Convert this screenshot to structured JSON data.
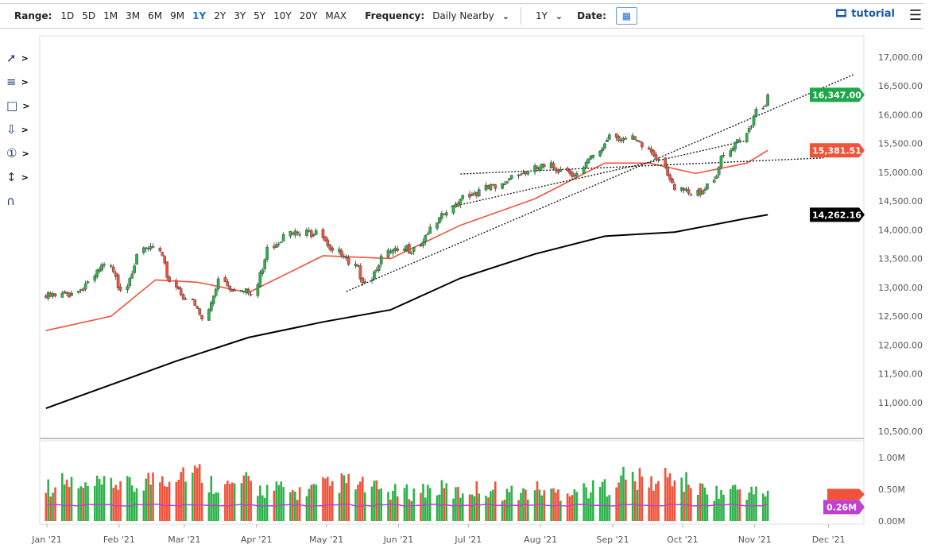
{
  "toolbar": {
    "range_label": "Range:",
    "ranges": [
      "1D",
      "5D",
      "1M",
      "3M",
      "6M",
      "9M",
      "1Y",
      "2Y",
      "3Y",
      "5Y",
      "10Y",
      "20Y",
      "MAX"
    ],
    "active_range": "1Y",
    "frequency_label": "Frequency:",
    "frequency_value": "Daily Nearby",
    "period_value": "1Y",
    "date_label": "Date:",
    "tutorial": "tutorial"
  },
  "drawing_tools": [
    "line-tool-icon",
    "fib-lines-icon",
    "rectangle-tool-icon",
    "arrow-down-icon",
    "numbered-marker-icon",
    "measure-tool-icon",
    "magnet-icon"
  ],
  "chart_data": {
    "type": "candlestick",
    "price_axis": {
      "min": 10500,
      "max": 17000,
      "ticks": [
        "17,000.00",
        "16,500.00",
        "16,000.00",
        "15,500.00",
        "15,000.00",
        "14,500.00",
        "14,000.00",
        "13,500.00",
        "13,000.00",
        "12,500.00",
        "12,000.00",
        "11,500.00",
        "11,000.00",
        "10,500.00"
      ]
    },
    "volume_axis": {
      "ticks": [
        "1.00M",
        "0.50M",
        "0.00M"
      ]
    },
    "x_ticks": [
      {
        "label": "Jan '21",
        "date": "2021-01-01"
      },
      {
        "label": "Feb '21",
        "date": "2021-02-01"
      },
      {
        "label": "Mar '21",
        "date": "2021-03-01"
      },
      {
        "label": "Apr '21",
        "date": "2021-04-01"
      },
      {
        "label": "May '21",
        "date": "2021-05-01"
      },
      {
        "label": "Jun '21",
        "date": "2021-06-01"
      },
      {
        "label": "Jul '21",
        "date": "2021-07-01"
      },
      {
        "label": "Aug '21",
        "date": "2021-08-01"
      },
      {
        "label": "Sep '21",
        "date": "2021-09-01"
      },
      {
        "label": "Oct '21",
        "date": "2021-10-01"
      },
      {
        "label": "Nov '21",
        "date": "2021-11-01"
      },
      {
        "label": "Dec '21",
        "date": "2021-12-01"
      }
    ],
    "weekly_start": "2021-01-04",
    "weekly_closes": [
      12850,
      12900,
      13100,
      13400,
      12950,
      13575,
      13700,
      13100,
      12800,
      12450,
      13150,
      12950,
      12880,
      13700,
      13920,
      13920,
      13990,
      13640,
      13400,
      13100,
      13550,
      13640,
      13700,
      14050,
      14300,
      14600,
      14700,
      14720,
      14950,
      15020,
      15100,
      15050,
      14980,
      15300,
      15650,
      15580,
      15440,
      15230,
      14700,
      14600,
      14800,
      15300,
      15550,
      16100,
      16347
    ],
    "weekly_volume_m": [
      0.55,
      0.6,
      0.5,
      0.55,
      0.6,
      0.55,
      0.65,
      0.7,
      0.8,
      0.75,
      0.6,
      0.55,
      0.6,
      0.5,
      0.5,
      0.45,
      0.5,
      0.55,
      0.6,
      0.55,
      0.5,
      0.45,
      0.45,
      0.5,
      0.5,
      0.45,
      0.5,
      0.5,
      0.45,
      0.45,
      0.5,
      0.45,
      0.5,
      0.5,
      0.55,
      0.7,
      0.65,
      0.6,
      0.7,
      0.6,
      0.5,
      0.45,
      0.5,
      0.45,
      0.45
    ],
    "ma_200": [
      [
        "2021-01-04",
        10900
      ],
      [
        "2021-03-01",
        11720
      ],
      [
        "2021-04-01",
        12130
      ],
      [
        "2021-05-03",
        12400
      ],
      [
        "2021-06-01",
        12610
      ],
      [
        "2021-07-01",
        13160
      ],
      [
        "2021-08-02",
        13580
      ],
      [
        "2021-09-01",
        13890
      ],
      [
        "2021-10-01",
        13960
      ],
      [
        "2021-11-01",
        14200
      ],
      [
        "2021-11-10",
        14262.16
      ]
    ],
    "ma_50": [
      [
        "2021-01-04",
        12250
      ],
      [
        "2021-02-01",
        12500
      ],
      [
        "2021-02-20",
        13130
      ],
      [
        "2021-03-10",
        13090
      ],
      [
        "2021-04-01",
        12910
      ],
      [
        "2021-05-03",
        13550
      ],
      [
        "2021-06-01",
        13500
      ],
      [
        "2021-07-01",
        14080
      ],
      [
        "2021-08-02",
        14540
      ],
      [
        "2021-09-01",
        15160
      ],
      [
        "2021-09-20",
        15160
      ],
      [
        "2021-10-10",
        14980
      ],
      [
        "2021-11-01",
        15160
      ],
      [
        "2021-11-10",
        15381.51
      ]
    ],
    "trendlines": [
      [
        [
          "2021-05-13",
          12930
        ],
        [
          "2021-12-17",
          16700
        ]
      ],
      [
        [
          "2021-07-01",
          14970
        ],
        [
          "2021-12-04",
          15250
        ]
      ],
      [
        [
          "2021-06-27",
          14400
        ],
        [
          "2021-11-01",
          15550
        ]
      ]
    ],
    "last_price": "16,347.00",
    "ma_50_value": "15,381.51",
    "ma_200_value": "14,262.16",
    "volume_ma_value": "0.26M",
    "colors": {
      "up": "#2db34a",
      "down": "#f0533a",
      "ma50": "#f0533a",
      "ma200": "#000000",
      "volume_ma": "#c040d0",
      "last": "#1fa84a"
    }
  }
}
